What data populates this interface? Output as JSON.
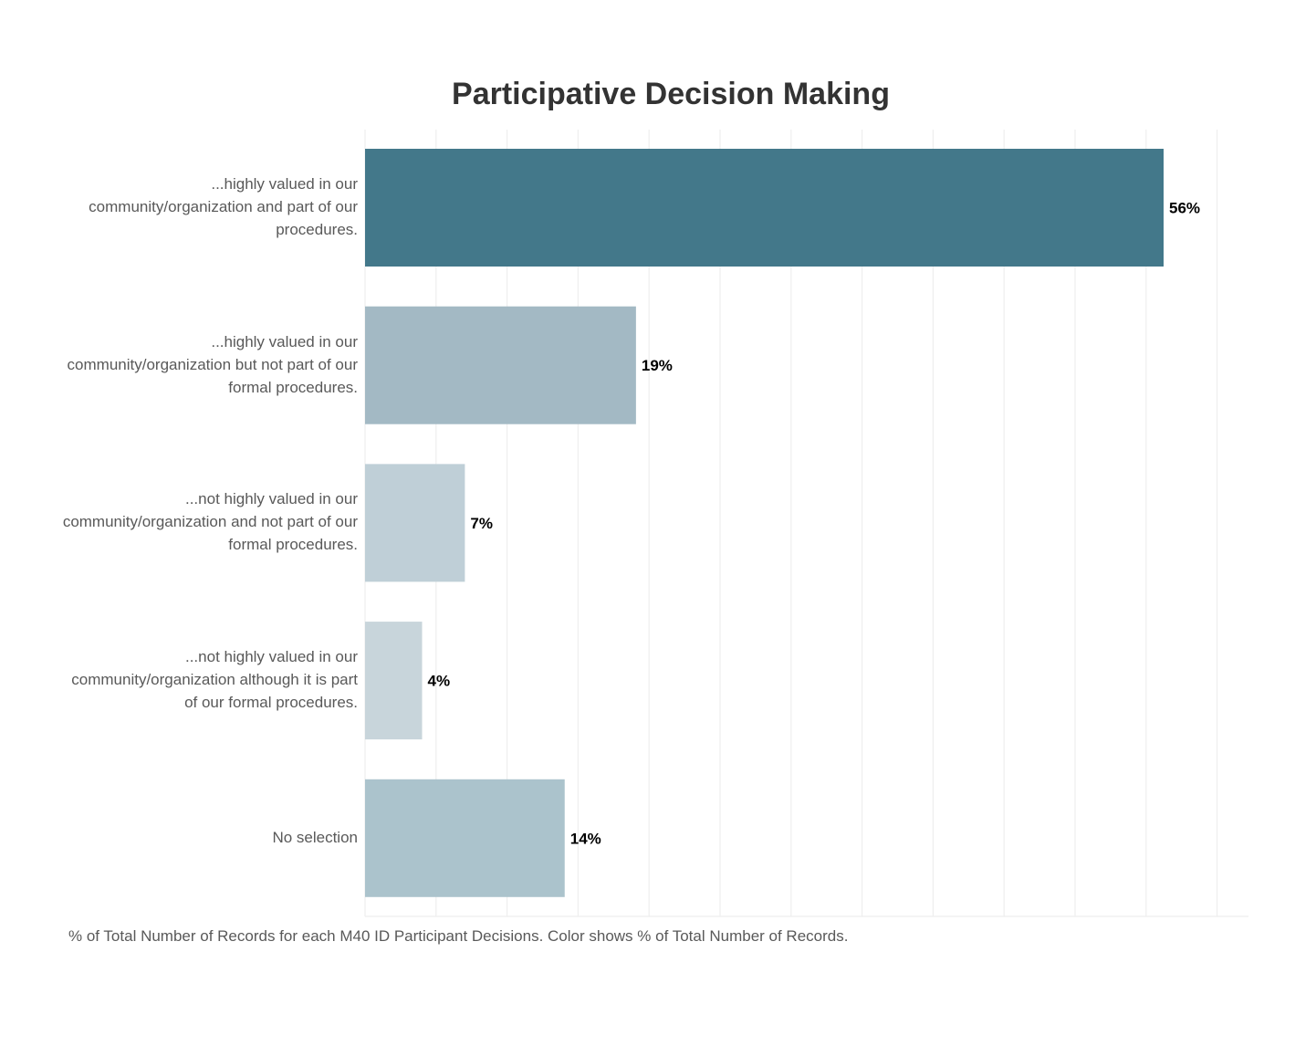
{
  "chart_data": {
    "type": "bar",
    "orientation": "horizontal",
    "title": "Participative Decision Making",
    "categories": [
      "...highly valued in our community/organization and part of our procedures.",
      "...highly valued in our community/organization but not part of our formal procedures.",
      "...not highly valued in our community/organization and not part of our formal procedures.",
      "...not highly valued in our community/organization although it is part of our formal procedures.",
      "No selection"
    ],
    "values": [
      56,
      19,
      7,
      4,
      14
    ],
    "data_labels": [
      "56%",
      "19%",
      "7%",
      "4%",
      "14%"
    ],
    "colors": [
      "#43788a",
      "#a3b9c4",
      "#bfcfd7",
      "#c8d5db",
      "#abc3cc"
    ],
    "value_unit": "%",
    "xlim": [
      0,
      62
    ],
    "grid": true,
    "footnote": "% of Total Number of Records for each M40 ID Participant Decisions.  Color shows % of Total Number of Records."
  }
}
